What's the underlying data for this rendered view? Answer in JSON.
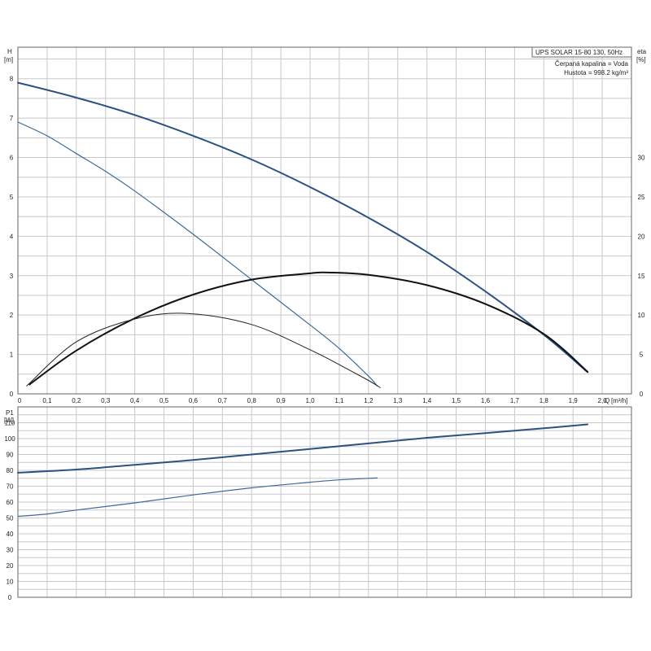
{
  "info_box": {
    "title": "UPS SOLAR 15-80 130, 50Hz",
    "liquid": "Čerpaná kapalina = Voda",
    "density": "Hustota = 998.2 kg/m³"
  },
  "chart_data": [
    {
      "type": "line",
      "panel": "head-efficiency",
      "x_tick_labels": [
        "0",
        "0,1",
        "0,2",
        "0,3",
        "0,4",
        "0,5",
        "0,6",
        "0,7",
        "0,8",
        "0,9",
        "1,0",
        "1,1",
        "1,2",
        "1,3",
        "1,4",
        "1,5",
        "1,6",
        "1,7",
        "1,8",
        "1,9",
        "2,0"
      ],
      "xlabel": "Q",
      "xunit": "[m³/h]",
      "xlim": [
        0,
        2.1
      ],
      "ylabel": "H",
      "yunit": "[m]",
      "y_ticks": [
        0,
        1,
        2,
        3,
        4,
        5,
        6,
        7,
        8
      ],
      "ylim": [
        0,
        8.8
      ],
      "y2label": "eta",
      "y2unit": "[%]",
      "y2_ticks": [
        0,
        5,
        10,
        15,
        20,
        25,
        30
      ],
      "y2lim": [
        0,
        44
      ],
      "grid": true,
      "series": [
        {
          "axis": "left",
          "color": "#2c5282",
          "width": 2.0,
          "x": [
            0,
            0.2,
            0.4,
            0.6,
            0.8,
            1.0,
            1.2,
            1.4,
            1.6,
            1.8,
            1.95
          ],
          "values": [
            7.9,
            7.52,
            7.08,
            6.55,
            5.95,
            5.25,
            4.47,
            3.6,
            2.6,
            1.5,
            0.55
          ]
        },
        {
          "axis": "left",
          "color": "#3a6a9a",
          "width": 1.2,
          "x": [
            0,
            0.1,
            0.2,
            0.3,
            0.4,
            0.6,
            0.8,
            1.0,
            1.1,
            1.2,
            1.23
          ],
          "values": [
            6.9,
            6.55,
            6.1,
            5.65,
            5.15,
            4.05,
            2.9,
            1.75,
            1.15,
            0.45,
            0.2
          ]
        },
        {
          "axis": "right",
          "color": "#111111",
          "width": 2.0,
          "x": [
            0.04,
            0.2,
            0.4,
            0.6,
            0.8,
            1.0,
            1.06,
            1.2,
            1.4,
            1.6,
            1.8,
            1.95
          ],
          "values": [
            1.2,
            5.5,
            9.6,
            12.6,
            14.5,
            15.3,
            15.4,
            15.1,
            13.8,
            11.4,
            7.6,
            2.8
          ]
        },
        {
          "axis": "right",
          "color": "#222222",
          "width": 1.0,
          "x": [
            0.03,
            0.2,
            0.4,
            0.58,
            0.8,
            1.0,
            1.1,
            1.2,
            1.24
          ],
          "values": [
            1.0,
            6.6,
            9.5,
            10.2,
            8.8,
            5.6,
            3.7,
            1.7,
            0.8
          ]
        }
      ]
    },
    {
      "type": "line",
      "panel": "power",
      "ylabel": "P1",
      "yunit": "[W]",
      "y_ticks": [
        0,
        10,
        20,
        30,
        40,
        50,
        60,
        70,
        80,
        90,
        100,
        110
      ],
      "ylim": [
        0,
        120
      ],
      "xlim": [
        0,
        2.1
      ],
      "grid": true,
      "series": [
        {
          "color": "#2c5282",
          "width": 2.0,
          "x": [
            0,
            0.2,
            0.4,
            0.6,
            0.8,
            1.0,
            1.2,
            1.4,
            1.6,
            1.8,
            1.95
          ],
          "values": [
            78.5,
            80.5,
            83.5,
            86.5,
            90,
            93.5,
            97,
            100.5,
            103.5,
            106.5,
            109
          ]
        },
        {
          "color": "#3a6a9a",
          "width": 1.2,
          "x": [
            0,
            0.1,
            0.2,
            0.4,
            0.6,
            0.8,
            1.0,
            1.1,
            1.2,
            1.23
          ],
          "values": [
            51,
            52.5,
            55,
            59.5,
            64.5,
            69,
            72.5,
            74,
            75,
            75.2
          ]
        }
      ]
    }
  ]
}
